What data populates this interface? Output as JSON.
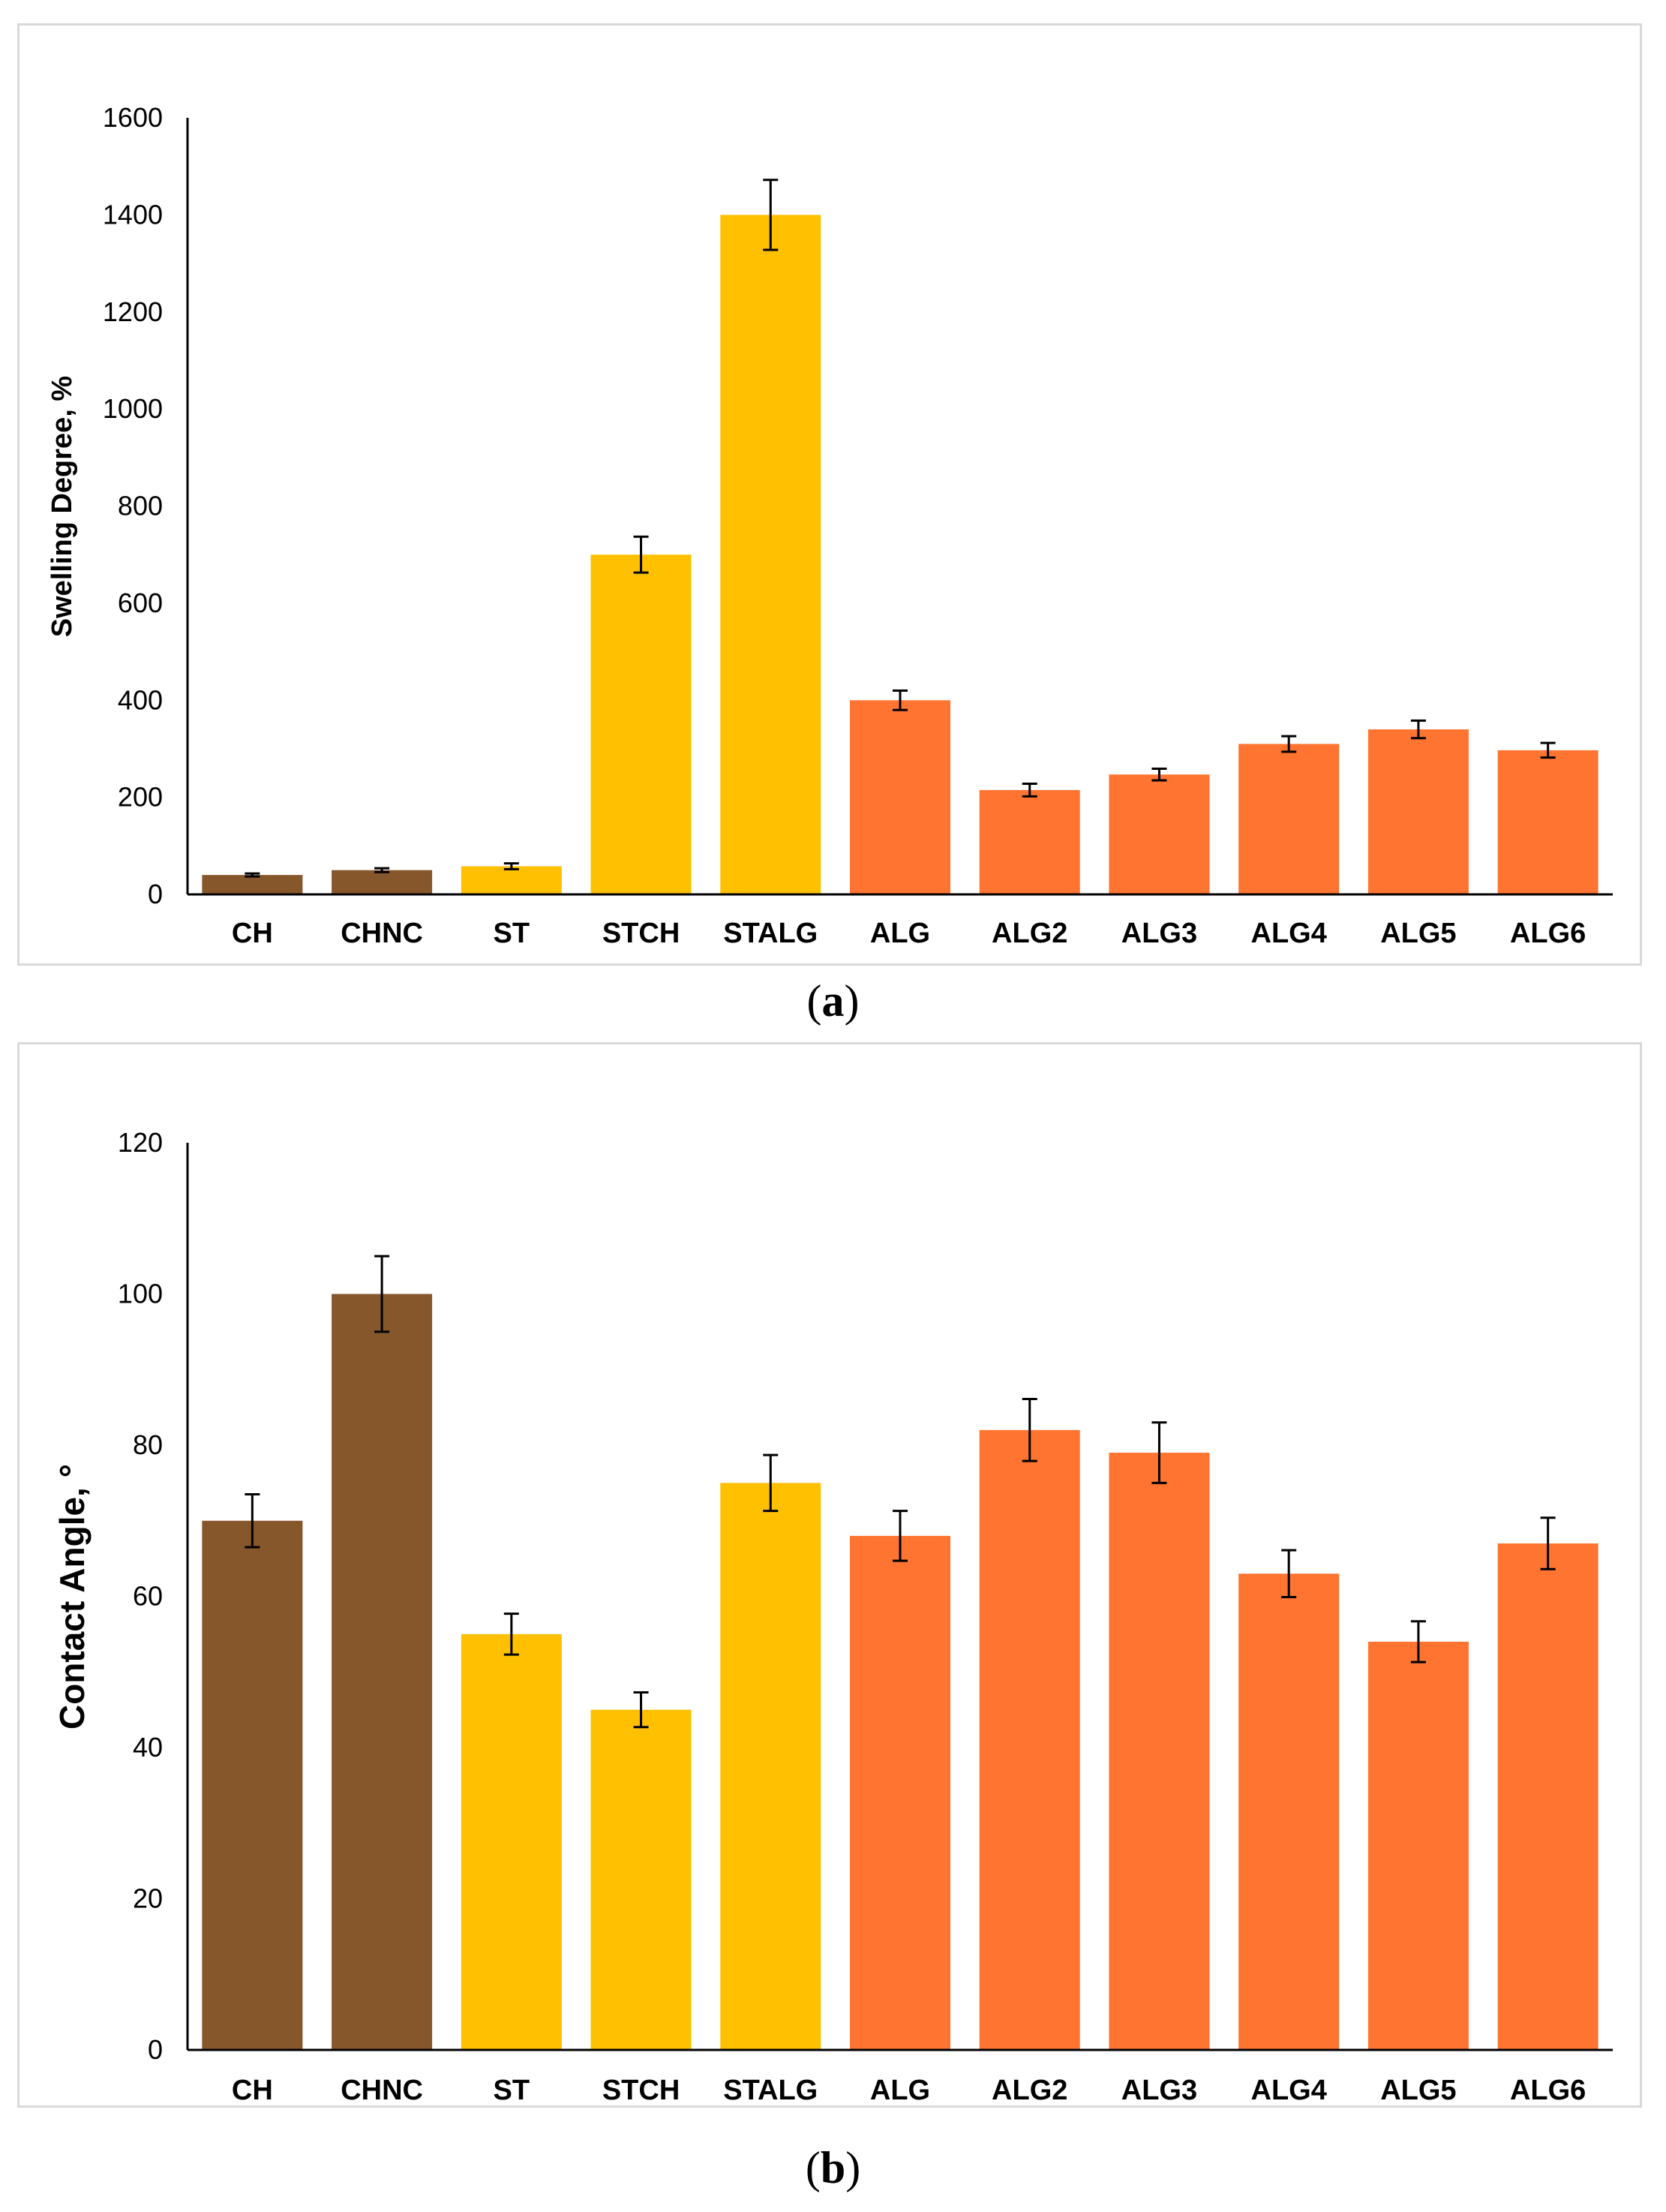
{
  "chart_data": [
    {
      "id": "a",
      "type": "bar",
      "caption_open": "(",
      "caption_letter": "a",
      "caption_close": ")",
      "ylabel": "Swelling Degree, %",
      "xlabel": "",
      "ylim": [
        0,
        1600
      ],
      "yticks": [
        0,
        200,
        400,
        600,
        800,
        1000,
        1200,
        1400,
        1600
      ],
      "categories": [
        "CH",
        "CHNC",
        "ST",
        "STCH",
        "STALG",
        "ALG",
        "ALG2",
        "ALG3",
        "ALG4",
        "ALG5",
        "ALG6"
      ],
      "values": [
        40,
        50,
        58,
        700,
        1400,
        400,
        215,
        247,
        310,
        340,
        297
      ],
      "errors": [
        3,
        4,
        6,
        37,
        72,
        20,
        13,
        12,
        16,
        18,
        15
      ],
      "colors": [
        "#86572b",
        "#86572b",
        "#fec000",
        "#fec000",
        "#fec000",
        "#fe7430",
        "#fe7430",
        "#fe7430",
        "#fe7430",
        "#fe7430",
        "#fe7430"
      ],
      "grid": false,
      "legend": "none"
    },
    {
      "id": "b",
      "type": "bar",
      "caption_open": "(",
      "caption_letter": "b",
      "caption_close": ")",
      "ylabel": "Contact Angle, °",
      "xlabel": "",
      "ylim": [
        0,
        120
      ],
      "yticks": [
        0,
        20,
        40,
        60,
        80,
        100,
        120
      ],
      "categories": [
        "CH",
        "CHNC",
        "ST",
        "STCH",
        "STALG",
        "ALG",
        "ALG2",
        "ALG3",
        "ALG4",
        "ALG5",
        "ALG6"
      ],
      "values": [
        70,
        100,
        55,
        45,
        75,
        68,
        82,
        79,
        63,
        54,
        67
      ],
      "errors": [
        3.5,
        5,
        2.7,
        2.3,
        3.7,
        3.3,
        4.1,
        4,
        3.1,
        2.7,
        3.4
      ],
      "colors": [
        "#86572b",
        "#86572b",
        "#fec000",
        "#fec000",
        "#fec000",
        "#fe7430",
        "#fe7430",
        "#fe7430",
        "#fe7430",
        "#fe7430",
        "#fe7430"
      ],
      "grid": false,
      "legend": "none"
    }
  ]
}
